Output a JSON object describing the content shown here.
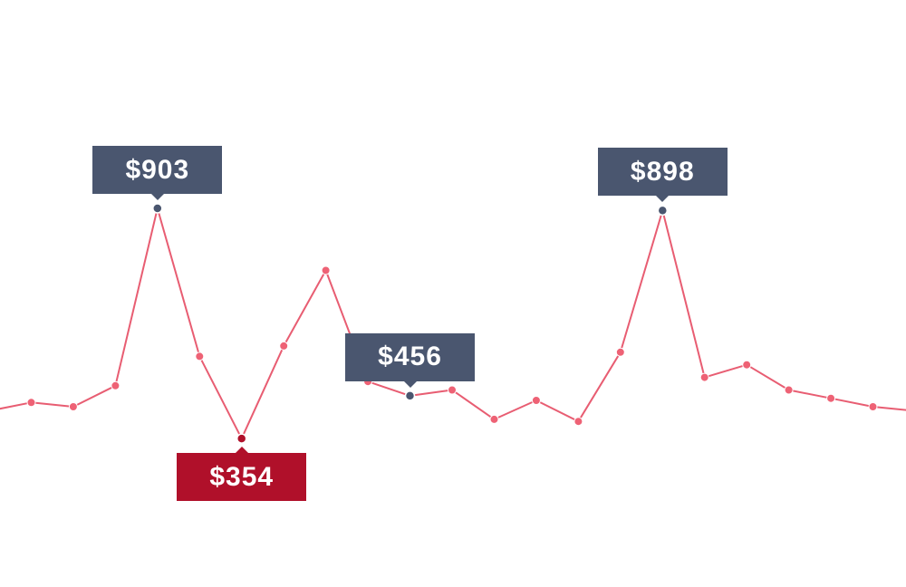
{
  "chart_data": {
    "type": "line",
    "title": "",
    "xlabel": "",
    "ylabel": "",
    "grid": false,
    "legend": "none",
    "x": [
      1,
      2,
      3,
      4,
      5,
      6,
      7,
      8,
      9,
      10,
      11,
      12,
      13,
      14,
      15,
      16,
      17,
      18,
      19,
      20,
      21,
      22,
      23
    ],
    "series": [
      {
        "values": [
          420,
          440,
          430,
          480,
          903,
          550,
          354,
          575,
          755,
          490,
          456,
          470,
          400,
          445,
          395,
          560,
          898,
          500,
          530,
          470,
          450,
          430,
          420
        ],
        "color": "#e85d72"
      }
    ],
    "ylim": [
      0,
      1400
    ],
    "annotations": [
      {
        "point_index": 4,
        "label": "$903",
        "style": "slate",
        "placement": "above"
      },
      {
        "point_index": 6,
        "label": "$354",
        "style": "crimson",
        "placement": "below"
      },
      {
        "point_index": 10,
        "label": "$456",
        "style": "slate",
        "placement": "above"
      },
      {
        "point_index": 16,
        "label": "$898",
        "style": "slate",
        "placement": "above"
      }
    ]
  },
  "colors": {
    "line": "#e85d72",
    "point": "#ee6275",
    "tooltip_slate": "#4a566f",
    "tooltip_crimson": "#b0102a",
    "highlight_slate": "#4a566f",
    "highlight_crimson": "#b0102a"
  }
}
